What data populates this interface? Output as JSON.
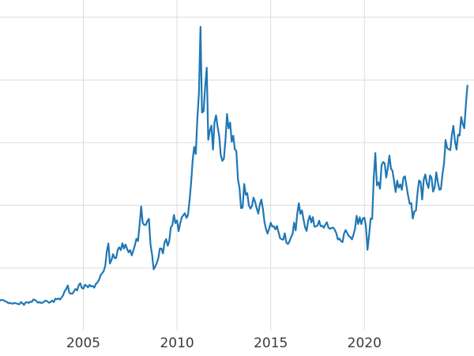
{
  "chart": {
    "background": "#ffffff",
    "line_color": "#1f77b4",
    "grid_color": "#dcdcdc",
    "tick_label_color": "#3b3b3b",
    "tick_font_size": 17,
    "x_tick_labels": [
      "2005",
      "2010",
      "2015",
      "2020"
    ]
  },
  "chart_data": {
    "type": "line",
    "title": "",
    "xlabel": "",
    "ylabel": "",
    "legend": "none",
    "grid": true,
    "x_ticks": [
      2005,
      2010,
      2015,
      2020
    ],
    "xlim": [
      2000.55,
      2025.85
    ],
    "ylim": [
      0,
      52
    ],
    "y_gridlines": [
      10,
      20,
      30,
      40,
      50
    ],
    "x_start_year": 2000.0,
    "x_interval_years": 0.0833333,
    "interval": "monthly",
    "values": [
      5.28,
      5.26,
      5.08,
      5.07,
      5.03,
      5.0,
      5.0,
      4.85,
      4.9,
      4.84,
      4.68,
      4.61,
      4.37,
      4.45,
      4.33,
      4.33,
      4.43,
      4.36,
      4.26,
      4.2,
      4.57,
      4.37,
      4.12,
      4.52,
      4.52,
      4.43,
      4.62,
      4.6,
      4.97,
      4.9,
      4.72,
      4.45,
      4.57,
      4.4,
      4.49,
      4.67,
      4.81,
      4.66,
      4.45,
      4.56,
      4.81,
      4.56,
      5.1,
      5.01,
      5.15,
      4.97,
      5.29,
      5.63,
      6.3,
      6.65,
      7.21,
      6.07,
      5.89,
      5.92,
      6.3,
      6.65,
      6.42,
      7.23,
      7.56,
      6.82,
      6.72,
      7.32,
      7.16,
      6.92,
      7.32,
      7.06,
      7.15,
      6.87,
      7.45,
      7.67,
      8.1,
      8.83,
      9.15,
      9.5,
      10.31,
      12.62,
      13.91,
      10.7,
      11.24,
      12.21,
      11.58,
      11.6,
      12.9,
      13.3,
      12.85,
      13.95,
      13.1,
      13.75,
      13.05,
      12.5,
      12.86,
      12.02,
      12.82,
      13.65,
      14.67,
      14.3,
      16.89,
      19.81,
      17.23,
      16.87,
      16.86,
      17.5,
      17.84,
      13.78,
      12.14,
      9.79,
      10.2,
      10.79,
      11.57,
      13.11,
      13.11,
      12.33,
      14.11,
      14.61,
      13.56,
      14.27,
      16.45,
      16.82,
      18.46,
      17.17,
      17.6,
      15.88,
      17.11,
      18.06,
      18.41,
      18.74,
      17.99,
      18.42,
      20.71,
      23.56,
      27.21,
      29.32,
      28.18,
      33.77,
      37.87,
      48.48,
      34.8,
      35.02,
      38.9,
      41.95,
      30.45,
      31.9,
      32.73,
      28.88,
      33.26,
      34.36,
      32.48,
      31.02,
      28.05,
      27.08,
      27.44,
      30.46,
      34.57,
      32.27,
      33.21,
      30.15,
      31.11,
      28.95,
      28.64,
      24.17,
      22.74,
      19.55,
      19.62,
      23.4,
      21.68,
      21.93,
      19.99,
      19.47,
      19.93,
      21.23,
      20.55,
      19.54,
      18.68,
      20.1,
      20.92,
      19.45,
      17.31,
      16.16,
      15.5,
      16.3,
      17.23,
      16.6,
      16.66,
      16.15,
      16.7,
      15.7,
      14.77,
      14.59,
      14.52,
      15.54,
      14.05,
      13.82,
      14.24,
      14.9,
      15.45,
      17.25,
      15.99,
      18.71,
      20.34,
      18.64,
      19.18,
      17.76,
      16.48,
      15.92,
      17.54,
      18.31,
      17.26,
      18.12,
      16.61,
      16.63,
      16.8,
      17.56,
      16.66,
      16.73,
      16.42,
      16.94,
      17.29,
      16.41,
      16.27,
      16.37,
      16.44,
      16.1,
      15.55,
      14.55,
      14.71,
      14.3,
      14.14,
      15.54,
      16.06,
      15.57,
      15.11,
      14.94,
      14.57,
      15.29,
      16.26,
      18.34,
      17.0,
      18.1,
      17.0,
      17.92,
      18.01,
      16.67,
      12.9,
      15.26,
      17.88,
      17.84,
      24.39,
      28.33,
      23.18,
      23.66,
      22.64,
      26.41,
      26.92,
      26.67,
      24.42,
      25.92,
      27.95,
      25.87,
      25.49,
      23.9,
      22.12,
      23.93,
      22.81,
      23.35,
      22.46,
      24.43,
      24.63,
      23.05,
      21.53,
      20.24,
      20.36,
      17.88,
      19.03,
      19.15,
      21.96,
      23.96,
      23.75,
      20.93,
      24.1,
      24.93,
      23.56,
      22.77,
      24.77,
      24.43,
      22.18,
      22.87,
      25.26,
      23.8,
      22.52,
      22.55,
      24.96,
      26.71,
      30.41,
      29.14,
      28.94,
      28.82,
      31.16,
      32.68,
      30.24,
      28.9,
      31.28,
      31.14,
      34.08,
      32.98,
      32.3,
      36.04,
      39.1
    ]
  }
}
